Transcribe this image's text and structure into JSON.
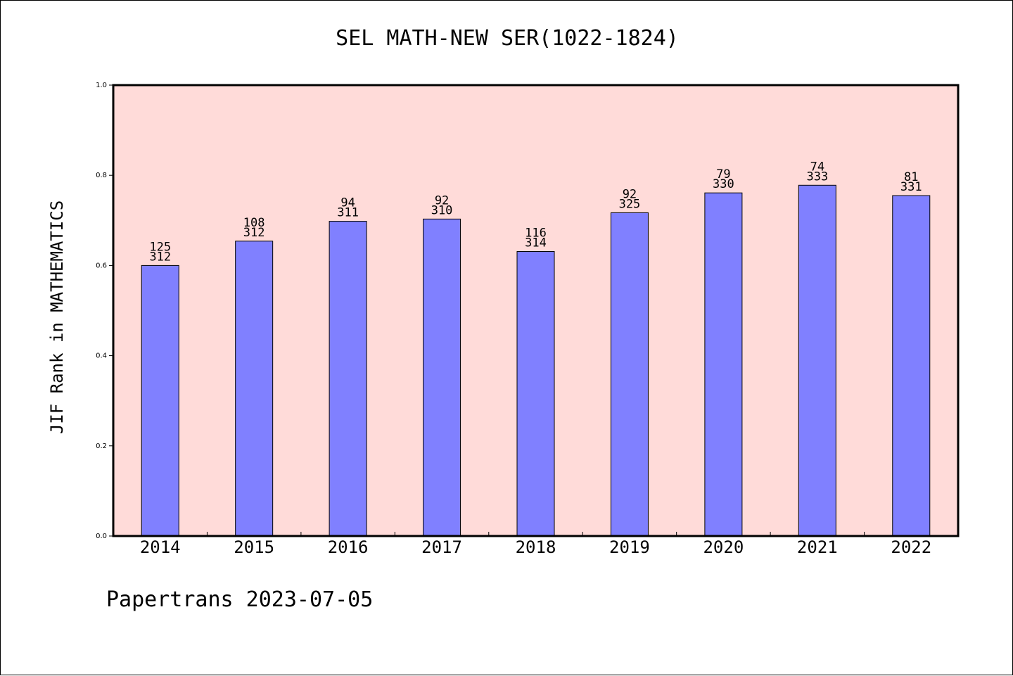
{
  "chart_data": {
    "type": "bar",
    "title": "SEL MATH-NEW SER(1022-1824)",
    "ylabel": "JIF Rank in MATHEMATICS",
    "xlabel": "",
    "categories": [
      "2014",
      "2015",
      "2016",
      "2017",
      "2018",
      "2019",
      "2020",
      "2021",
      "2022"
    ],
    "values": [
      0.6,
      0.654,
      0.698,
      0.703,
      0.631,
      0.717,
      0.761,
      0.778,
      0.755
    ],
    "rank": [
      "125",
      "108",
      "94",
      "92",
      "116",
      "92",
      "79",
      "74",
      "81"
    ],
    "total": [
      "312",
      "312",
      "311",
      "310",
      "314",
      "325",
      "330",
      "333",
      "331"
    ],
    "ylim": [
      0,
      1.0
    ],
    "yticks": [
      "0.0",
      "0.2",
      "0.4",
      "0.6",
      "0.8",
      "1.0"
    ],
    "grid": false,
    "colors": {
      "plot_background": "#ffdbd9",
      "bar_fill": "#8080ff",
      "bar_stroke": "#000000"
    }
  },
  "footer": {
    "text": "Papertrans 2023-07-05"
  }
}
